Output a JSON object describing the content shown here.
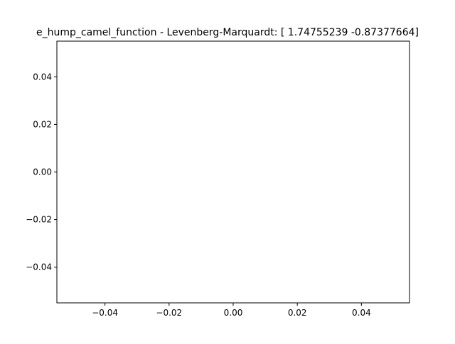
{
  "chart_data": {
    "type": "line",
    "title": "e_hump_camel_function - Levenberg-Marquardt: [ 1.74755239 -0.87377664]",
    "xlabel": "",
    "ylabel": "",
    "xlim": [
      -0.055,
      0.055
    ],
    "ylim": [
      -0.055,
      0.055
    ],
    "x_ticks": [
      "−0.04",
      "−0.02",
      "0.00",
      "0.02",
      "0.04"
    ],
    "x_tick_values": [
      -0.04,
      -0.02,
      0.0,
      0.02,
      0.04
    ],
    "y_ticks": [
      "−0.04",
      "−0.02",
      "0.00",
      "0.02",
      "0.04"
    ],
    "y_tick_values": [
      -0.04,
      -0.02,
      0.0,
      0.02,
      0.04
    ],
    "grid": false,
    "series": []
  }
}
